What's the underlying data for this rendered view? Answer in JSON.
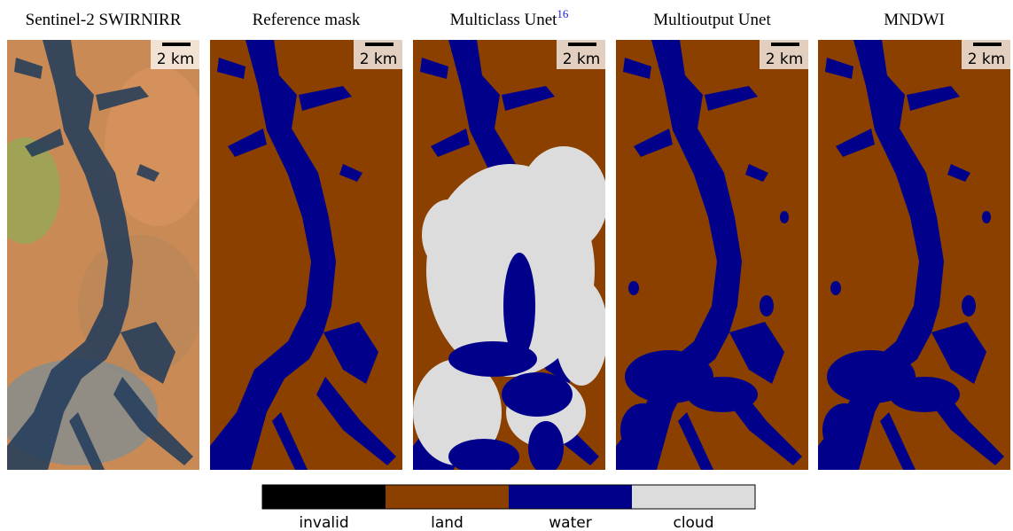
{
  "panels": [
    {
      "title": "Sentinel-2 SWIRNIRR",
      "scale_label": "2 km",
      "kind": "rgb"
    },
    {
      "title": "Reference mask",
      "scale_label": "2 km",
      "kind": "mask"
    },
    {
      "title": "Multiclass Unet",
      "superscript": "16",
      "scale_label": "2 km",
      "kind": "cloudy"
    },
    {
      "title": "Multioutput Unet",
      "scale_label": "2 km",
      "kind": "mask"
    },
    {
      "title": "MNDWI",
      "scale_label": "2 km",
      "kind": "noisy"
    }
  ],
  "legend": [
    {
      "label": "invalid",
      "color": "#000000"
    },
    {
      "label": "land",
      "color": "#8b4000"
    },
    {
      "label": "water",
      "color": "#00008b"
    },
    {
      "label": "cloud",
      "color": "#dcdcdc"
    }
  ]
}
